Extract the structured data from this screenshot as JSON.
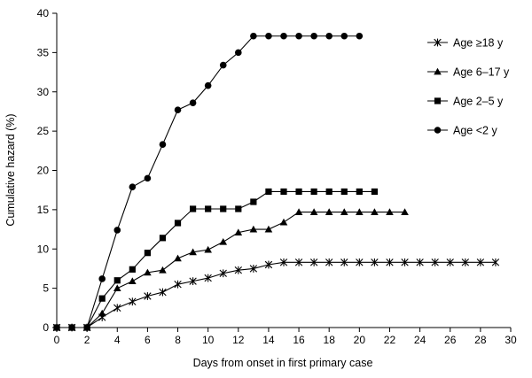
{
  "chart_data": {
    "type": "line",
    "xlabel": "Days from onset in first primary case",
    "ylabel": "Cumulative hazard (%)",
    "xlim": [
      0,
      30
    ],
    "ylim": [
      0,
      40
    ],
    "xticks": [
      0,
      2,
      4,
      6,
      8,
      10,
      12,
      14,
      16,
      18,
      20,
      22,
      24,
      26,
      28,
      30
    ],
    "yticks": [
      0,
      5,
      10,
      15,
      20,
      25,
      30,
      35,
      40
    ],
    "grid": false,
    "legend_position": "top-right",
    "series": [
      {
        "name": "Age ≥18 y",
        "marker": "star",
        "x": [
          0,
          1,
          2,
          3,
          4,
          5,
          6,
          7,
          8,
          9,
          10,
          11,
          12,
          13,
          14,
          15,
          16,
          17,
          18,
          19,
          20,
          21,
          22,
          23,
          24,
          25,
          26,
          27,
          28,
          29
        ],
        "values": [
          0,
          0,
          0,
          1.3,
          2.5,
          3.3,
          4.0,
          4.5,
          5.5,
          5.9,
          6.3,
          6.9,
          7.3,
          7.5,
          8.0,
          8.3,
          8.3,
          8.3,
          8.3,
          8.3,
          8.3,
          8.3,
          8.3,
          8.3,
          8.3,
          8.3,
          8.3,
          8.3,
          8.3,
          8.3
        ]
      },
      {
        "name": "Age 6–17 y",
        "marker": "triangle",
        "x": [
          0,
          1,
          2,
          3,
          4,
          5,
          6,
          7,
          8,
          9,
          10,
          11,
          12,
          13,
          14,
          15,
          16,
          17,
          18,
          19,
          20,
          21,
          22,
          23
        ],
        "values": [
          0,
          0,
          0,
          1.8,
          5.0,
          5.9,
          7.0,
          7.3,
          8.8,
          9.6,
          9.9,
          10.9,
          12.1,
          12.5,
          12.5,
          13.4,
          14.7,
          14.7,
          14.7,
          14.7,
          14.7,
          14.7,
          14.7,
          14.7
        ]
      },
      {
        "name": "Age 2–5 y",
        "marker": "square",
        "x": [
          0,
          1,
          2,
          3,
          4,
          5,
          6,
          7,
          8,
          9,
          10,
          11,
          12,
          13,
          14,
          15,
          16,
          17,
          18,
          19,
          20,
          21
        ],
        "values": [
          0,
          0,
          0,
          3.7,
          6.0,
          7.4,
          9.5,
          11.4,
          13.3,
          15.1,
          15.1,
          15.1,
          15.1,
          16.0,
          17.3,
          17.3,
          17.3,
          17.3,
          17.3,
          17.3,
          17.3,
          17.3
        ]
      },
      {
        "name": "Age <2 y",
        "marker": "circle",
        "x": [
          0,
          1,
          2,
          3,
          4,
          5,
          6,
          7,
          8,
          9,
          10,
          11,
          12,
          13,
          14,
          15,
          16,
          17,
          18,
          19,
          20
        ],
        "values": [
          0,
          0,
          0,
          6.2,
          12.4,
          17.9,
          19.0,
          23.3,
          27.7,
          28.6,
          30.8,
          33.4,
          35.0,
          37.1,
          37.1,
          37.1,
          37.1,
          37.1,
          37.1,
          37.1,
          37.1
        ]
      }
    ]
  }
}
